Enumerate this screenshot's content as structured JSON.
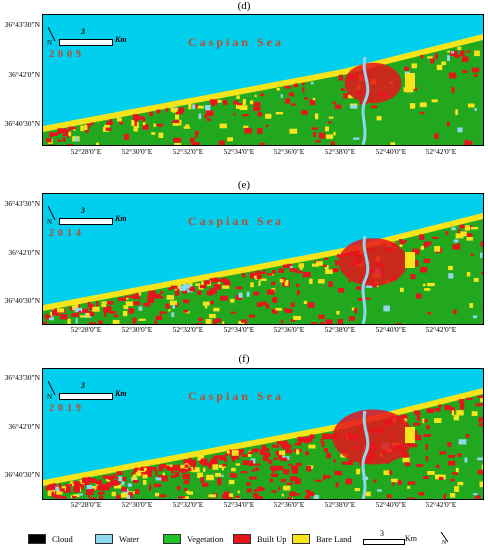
{
  "panels": [
    {
      "letter": "(d)",
      "year": "2009"
    },
    {
      "letter": "(e)",
      "year": "2014"
    },
    {
      "letter": "(f)",
      "year": "2019"
    }
  ],
  "map_labels": {
    "sea": "Caspian Sea",
    "scale_value": "3",
    "scale_unit": "Km",
    "north": "N"
  },
  "y_ticks": [
    "36°43'30\"N",
    "36°42'0\"N",
    "36°40'30\"N"
  ],
  "x_ticks": [
    "52°28'0\"E",
    "52°30'0\"E",
    "52°32'0\"E",
    "52°34'0\"E",
    "52°36'0\"E",
    "52°38'0\"E",
    "52°40'0\"E",
    "52°42'0\"E"
  ],
  "legend": {
    "items": [
      {
        "label": "Cloud",
        "color": "#000000"
      },
      {
        "label": "Water",
        "color": "#8fd8f0"
      },
      {
        "label": "Vegetation",
        "color": "#22c22a"
      },
      {
        "label": "Built Up",
        "color": "#e8141c"
      },
      {
        "label": "Bare Land",
        "color": "#f7e41a"
      }
    ],
    "scale_value": "3",
    "scale_unit": "Km",
    "north": "N"
  },
  "colors": {
    "sea": "#00d0ee",
    "land": "#22a81e",
    "built_up": "#e8141c",
    "bare_land": "#f7e41a",
    "water": "#8fd8f0",
    "label": "#c04a2b"
  }
}
